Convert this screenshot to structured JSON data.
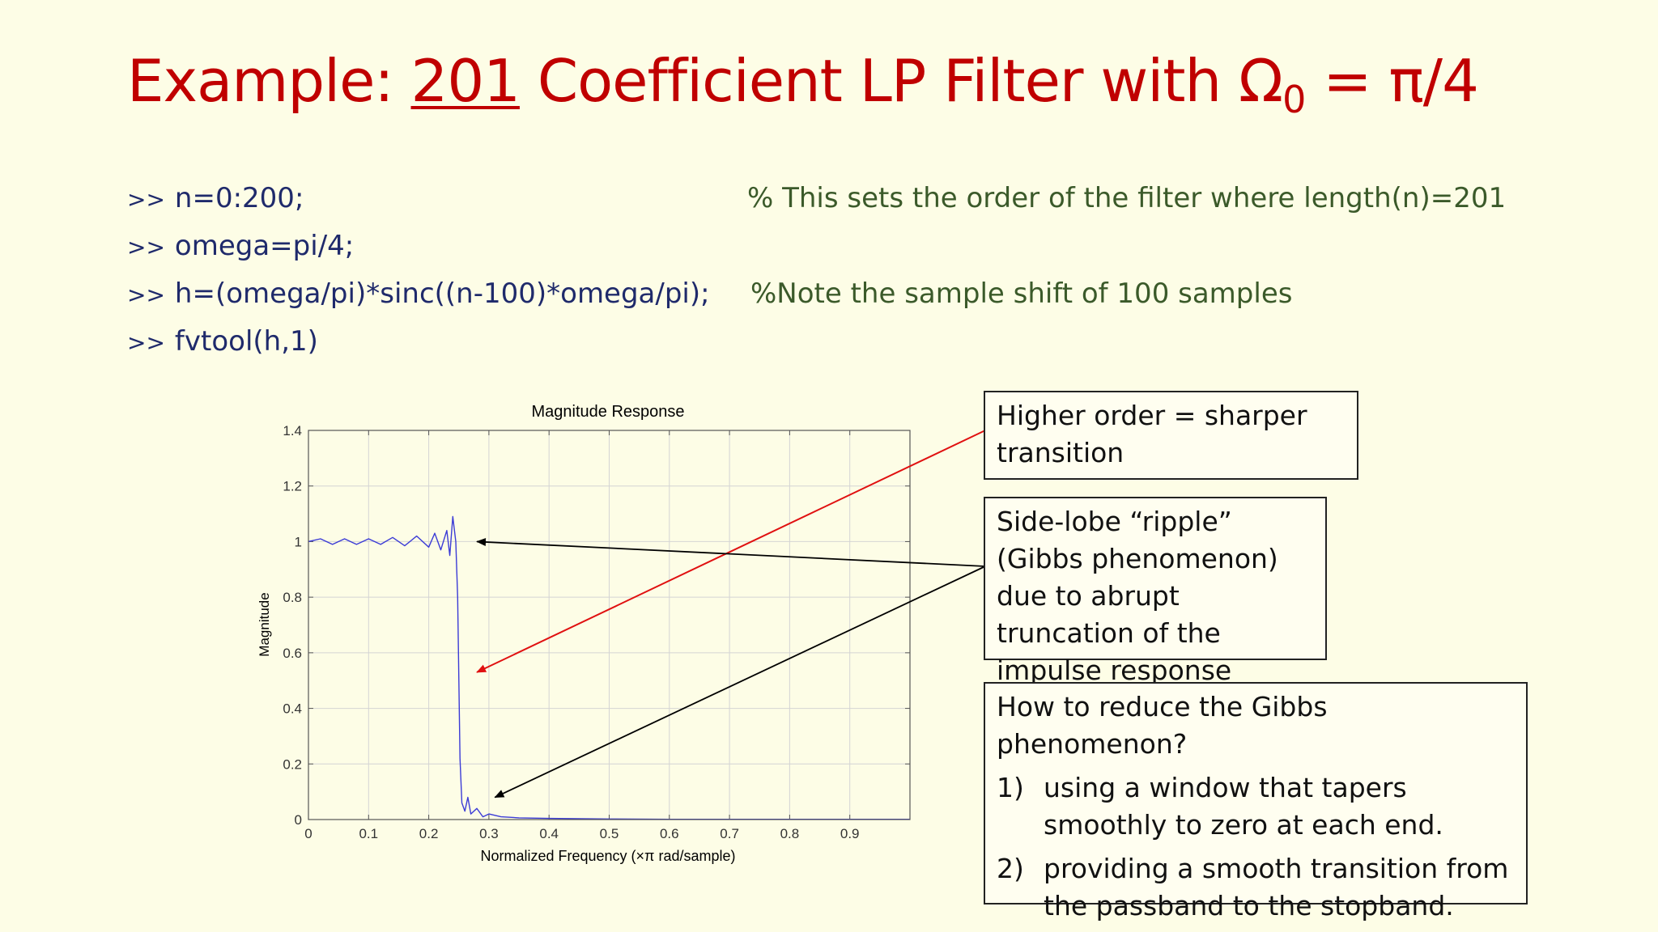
{
  "slide": {
    "title": {
      "prefix": "Example: ",
      "underlined": "201",
      "middle": " Coefficient LP Filter with Ω",
      "subscript": "0",
      "suffix": " = π/4"
    },
    "code_lines": [
      {
        "prompt": ">>",
        "code": "n=0:200;",
        "comment": "% This sets the order of the filter where length(n)=201"
      },
      {
        "prompt": ">>",
        "code": "omega=pi/4;",
        "comment": ""
      },
      {
        "prompt": ">>",
        "code": "h=(omega/pi)*sinc((n-100)*omega/pi);",
        "comment": "%Note the sample shift of 100 samples"
      },
      {
        "prompt": ">>",
        "code": "fvtool(h,1)",
        "comment": ""
      }
    ],
    "annotations": {
      "box1": "Higher order = sharper transition",
      "box2": "Side-lobe “ripple” (Gibbs phenomenon) due to abrupt truncation of the impulse response",
      "box3": {
        "heading": "How to reduce the Gibbs phenomenon?",
        "items": [
          {
            "num": "1)",
            "text": "using a window that tapers smoothly to zero at each end."
          },
          {
            "num": "2)",
            "text": "providing a smooth transition from the passband to the stopband."
          }
        ]
      }
    },
    "colors": {
      "title": "#c00000",
      "code": "#1f2a6b",
      "comment": "#3b5a2a",
      "curve": "#3b3bd6",
      "red_arrow": "#e01010",
      "black_arrow": "#000000"
    }
  },
  "chart_data": {
    "type": "line",
    "title": "Magnitude Response",
    "xlabel": "Normalized Frequency (×π rad/sample)",
    "ylabel": "Magnitude",
    "xlim": [
      0,
      1
    ],
    "ylim": [
      0,
      1.4
    ],
    "xticks": [
      "0",
      "0.1",
      "0.2",
      "0.3",
      "0.4",
      "0.5",
      "0.6",
      "0.7",
      "0.8",
      "0.9"
    ],
    "xtick_values": [
      0,
      0.1,
      0.2,
      0.3,
      0.4,
      0.5,
      0.6,
      0.7,
      0.8,
      0.9
    ],
    "yticks": [
      "0",
      "0.2",
      "0.4",
      "0.6",
      "0.8",
      "1",
      "1.2",
      "1.4"
    ],
    "ytick_values": [
      0,
      0.2,
      0.4,
      0.6,
      0.8,
      1.0,
      1.2,
      1.4
    ],
    "grid": true,
    "series": [
      {
        "x": [
          0,
          0.02,
          0.04,
          0.06,
          0.08,
          0.1,
          0.12,
          0.14,
          0.16,
          0.18,
          0.2,
          0.21,
          0.22,
          0.23,
          0.235,
          0.24,
          0.245,
          0.248,
          0.25,
          0.252,
          0.255,
          0.26,
          0.265,
          0.27,
          0.28,
          0.29,
          0.3,
          0.32,
          0.35,
          0.4,
          0.5,
          0.6,
          0.7,
          0.8,
          0.9,
          1.0
        ],
        "y": [
          1.0,
          1.01,
          0.99,
          1.01,
          0.99,
          1.01,
          0.99,
          1.015,
          0.985,
          1.02,
          0.98,
          1.03,
          0.97,
          1.04,
          0.95,
          1.09,
          1.0,
          0.8,
          0.5,
          0.22,
          0.06,
          0.03,
          0.08,
          0.02,
          0.04,
          0.01,
          0.02,
          0.01,
          0.006,
          0.004,
          0.002,
          0.001,
          0.001,
          0.001,
          0.001,
          0.001
        ]
      }
    ],
    "arrow_targets": {
      "red": {
        "x": 0.28,
        "y": 0.53
      },
      "black_passband": {
        "x": 0.28,
        "y": 1.0
      },
      "black_stopband": {
        "x": 0.31,
        "y": 0.08
      }
    }
  }
}
